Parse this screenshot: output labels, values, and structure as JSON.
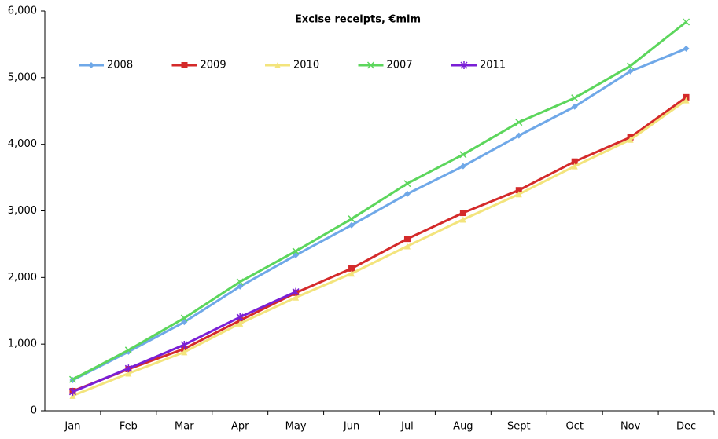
{
  "chart_data": {
    "type": "line",
    "title": "Excise receipts, €mlm",
    "categories": [
      "Jan",
      "Feb",
      "Mar",
      "Apr",
      "May",
      "Jun",
      "Jul",
      "Aug",
      "Sept",
      "Oct",
      "Nov",
      "Dec"
    ],
    "series": [
      {
        "name": "2008",
        "color": "#6fa8e8",
        "values": [
          460,
          885,
          1330,
          1865,
          2335,
          2785,
          3255,
          3670,
          4130,
          4565,
          5095,
          5435
        ]
      },
      {
        "name": "2009",
        "color": "#d42a2a",
        "values": [
          295,
          625,
          930,
          1355,
          1770,
          2135,
          2580,
          2970,
          3310,
          3740,
          4105,
          4705
        ]
      },
      {
        "name": "2010",
        "color": "#f3e47c",
        "values": [
          225,
          560,
          880,
          1310,
          1700,
          2060,
          2470,
          2870,
          3250,
          3670,
          4070,
          4660
        ]
      },
      {
        "name": "2007",
        "color": "#5cd65c",
        "values": [
          470,
          910,
          1390,
          1935,
          2395,
          2880,
          3410,
          3845,
          4330,
          4695,
          5175,
          5835
        ]
      },
      {
        "name": "2011",
        "color": "#7a1fd6",
        "values": [
          285,
          635,
          990,
          1405,
          1785,
          null,
          null,
          null,
          null,
          null,
          null,
          null
        ]
      }
    ],
    "ylim": [
      0,
      6000
    ],
    "yticks": [
      0,
      {
        "value": 1000,
        "label": "1,000"
      },
      {
        "value": 2000,
        "label": "2,000"
      },
      {
        "value": 3000,
        "label": "3,000"
      },
      {
        "value": 4000,
        "label": "4,000"
      },
      {
        "value": 5000,
        "label": "5,000"
      },
      {
        "value": 6000,
        "label": "6,000"
      }
    ],
    "grid": false
  }
}
